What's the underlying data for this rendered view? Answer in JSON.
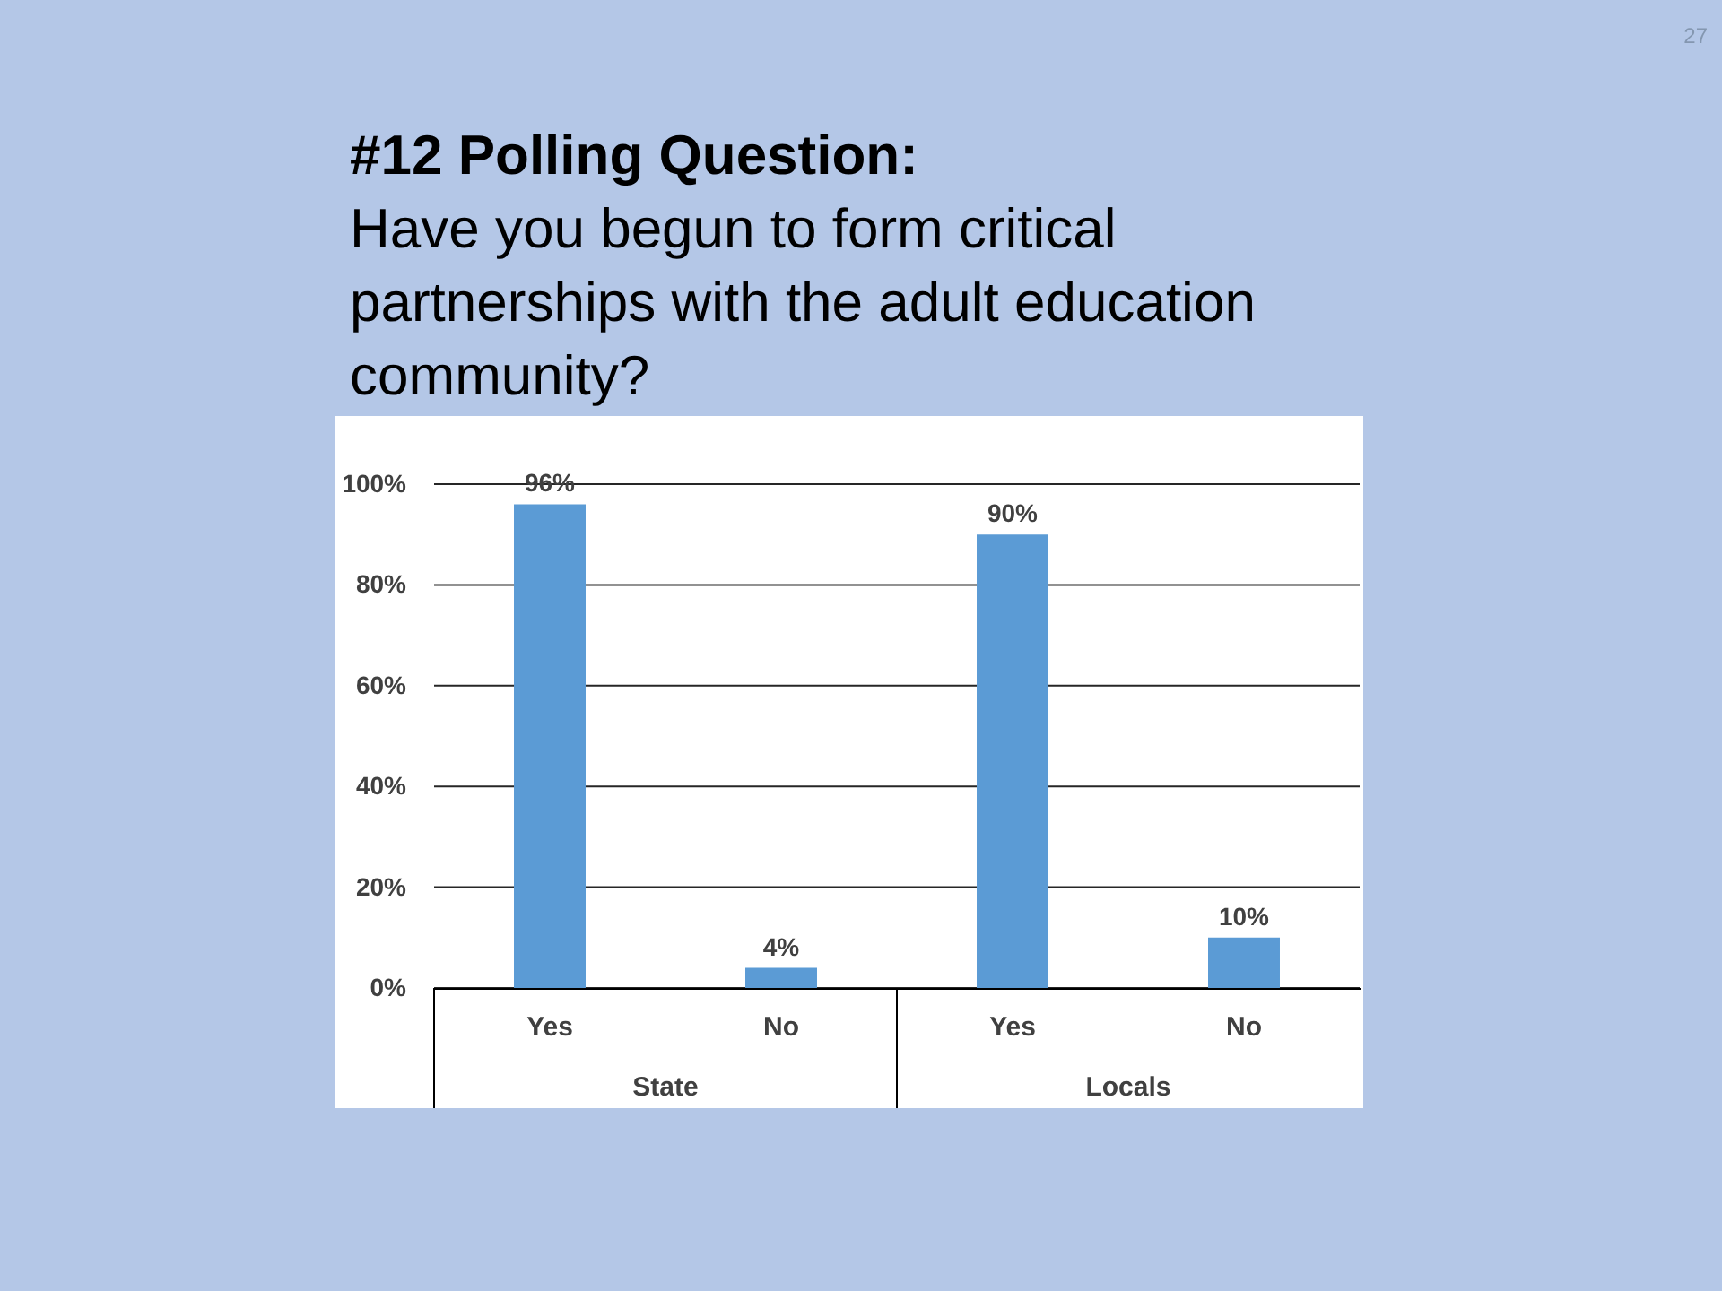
{
  "chart_data": {
    "type": "bar",
    "title": "#12 Polling Question:",
    "subtitle": "Have you begun to form critical partnerships with the adult education community?",
    "categories": [
      "Yes",
      "No",
      "Yes",
      "No"
    ],
    "values": [
      96,
      4,
      90,
      10
    ],
    "color": "#5b9bd5",
    "value_labels": [
      "96%",
      "4%",
      "90%",
      "10%"
    ],
    "ylim": [
      0,
      100
    ],
    "yticks": [
      {
        "value": 0,
        "label": "0%"
      },
      {
        "value": 20,
        "label": "20%"
      },
      {
        "value": 40,
        "label": "40%"
      },
      {
        "value": 60,
        "label": "60%"
      },
      {
        "value": 80,
        "label": "80%"
      },
      {
        "value": 100,
        "label": "100%"
      }
    ],
    "grid": "y",
    "annotations": [
      "State",
      "Locals",
      "27"
    ]
  }
}
